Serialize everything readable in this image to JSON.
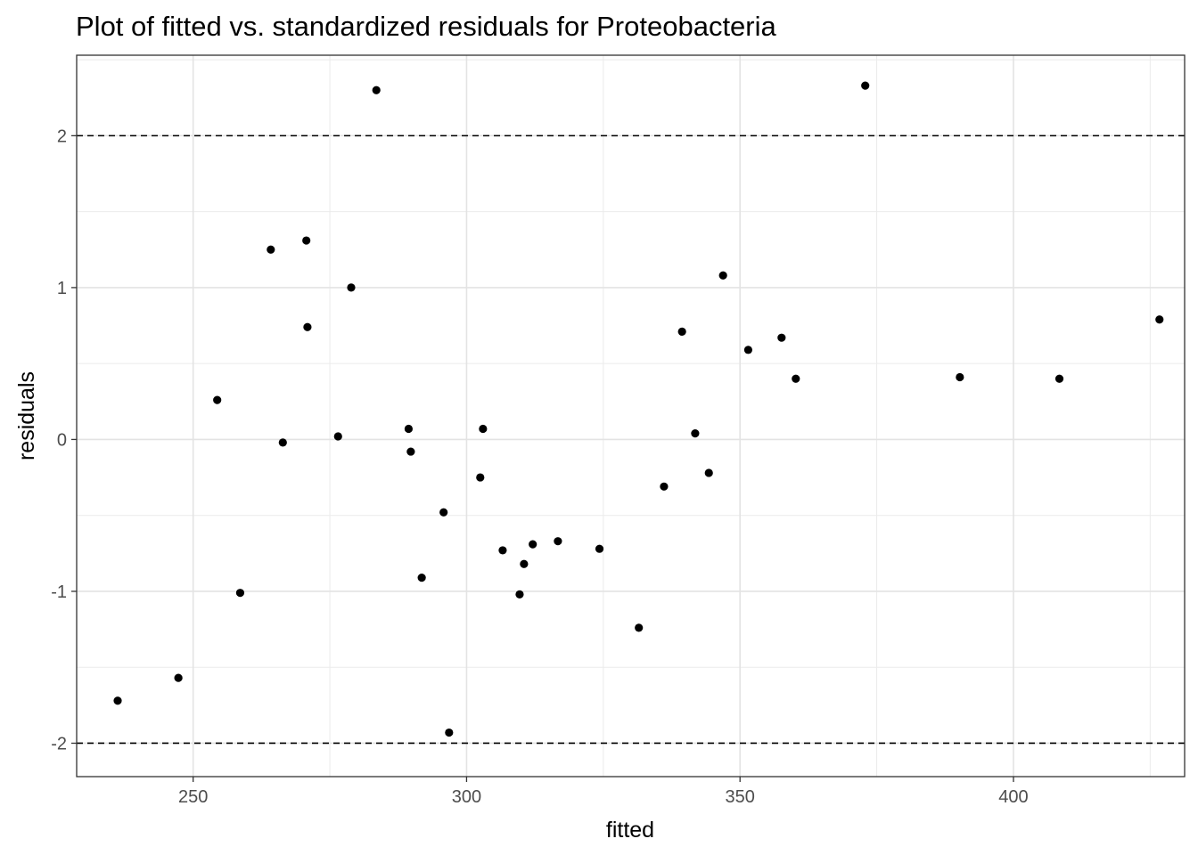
{
  "chart_data": {
    "type": "scatter",
    "title": "Plot of fitted vs. standardized residuals for Proteobacteria",
    "xlabel": "fitted",
    "ylabel": "residuals",
    "xlim": [
      228.7,
      431.3
    ],
    "ylim": [
      -2.22,
      2.53
    ],
    "x_ticks": [
      250,
      300,
      350,
      400
    ],
    "x_tick_labels": [
      "250",
      "300",
      "350",
      "400"
    ],
    "y_ticks": [
      -2,
      -1,
      0,
      1,
      2
    ],
    "y_tick_labels": [
      "-2",
      "-1",
      "0",
      "1",
      "2"
    ],
    "grid": true,
    "reference_lines": [
      2,
      -2
    ],
    "reference_line_style": "dashed",
    "point_color": "#000000",
    "points": [
      {
        "x": 236.2,
        "y": -1.72
      },
      {
        "x": 247.3,
        "y": -1.57
      },
      {
        "x": 254.4,
        "y": 0.26
      },
      {
        "x": 258.6,
        "y": -1.01
      },
      {
        "x": 264.2,
        "y": 1.25
      },
      {
        "x": 266.4,
        "y": -0.02
      },
      {
        "x": 270.7,
        "y": 1.31
      },
      {
        "x": 270.9,
        "y": 0.74
      },
      {
        "x": 276.5,
        "y": 0.02
      },
      {
        "x": 278.9,
        "y": 1.0
      },
      {
        "x": 283.5,
        "y": 2.3
      },
      {
        "x": 289.4,
        "y": 0.07
      },
      {
        "x": 289.8,
        "y": -0.08
      },
      {
        "x": 291.8,
        "y": -0.91
      },
      {
        "x": 295.8,
        "y": -0.48
      },
      {
        "x": 296.8,
        "y": -1.93
      },
      {
        "x": 302.5,
        "y": -0.25
      },
      {
        "x": 303.0,
        "y": 0.07
      },
      {
        "x": 306.6,
        "y": -0.73
      },
      {
        "x": 309.7,
        "y": -1.02
      },
      {
        "x": 310.5,
        "y": -0.82
      },
      {
        "x": 312.1,
        "y": -0.69
      },
      {
        "x": 316.7,
        "y": -0.67
      },
      {
        "x": 324.3,
        "y": -0.72
      },
      {
        "x": 331.5,
        "y": -1.24
      },
      {
        "x": 336.1,
        "y": -0.31
      },
      {
        "x": 339.4,
        "y": 0.71
      },
      {
        "x": 341.8,
        "y": 0.04
      },
      {
        "x": 344.3,
        "y": -0.22
      },
      {
        "x": 346.9,
        "y": 1.08
      },
      {
        "x": 351.5,
        "y": 0.59
      },
      {
        "x": 357.6,
        "y": 0.67
      },
      {
        "x": 360.2,
        "y": 0.4
      },
      {
        "x": 372.9,
        "y": 2.33
      },
      {
        "x": 390.2,
        "y": 0.41
      },
      {
        "x": 408.4,
        "y": 0.4
      },
      {
        "x": 426.7,
        "y": 0.79
      }
    ]
  }
}
